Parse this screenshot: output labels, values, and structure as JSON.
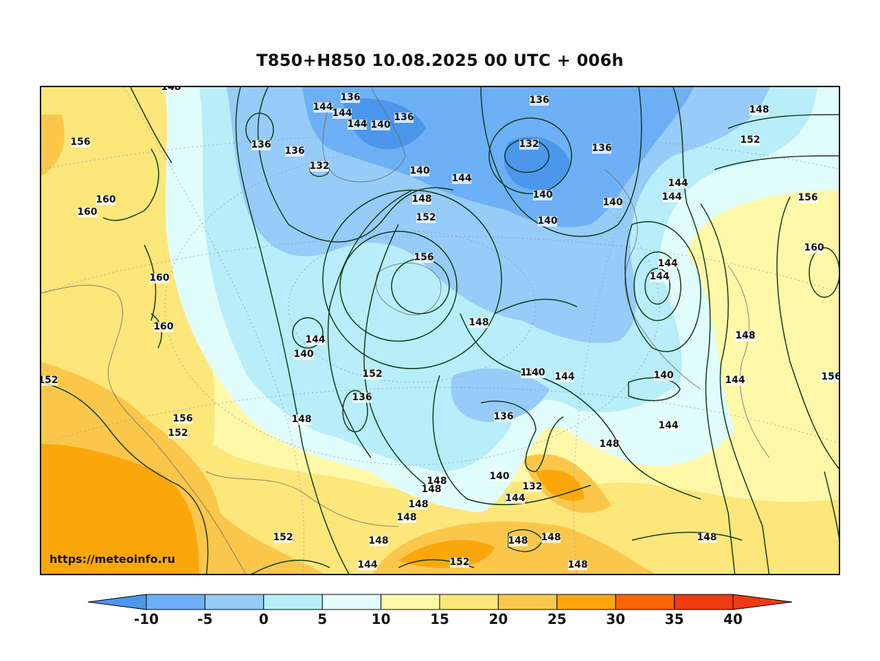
{
  "title": "T850+H850 10.08.2025 00 UTC + 006h",
  "watermark": "https://meteoinfo.ru",
  "colorbar": {
    "ticks": [
      "-10",
      "-5",
      "0",
      "5",
      "10",
      "15",
      "20",
      "25",
      "30",
      "35",
      "40"
    ],
    "colors": [
      "#4a97ec",
      "#6eb0f5",
      "#97cbf8",
      "#b7eef9",
      "#e0fcfb",
      "#fff8a8",
      "#fde67a",
      "#fbc74b",
      "#fba70c",
      "#fb6505",
      "#f03a10"
    ]
  },
  "contour_labels": [
    {
      "text": "148"
    },
    {
      "text": "156"
    },
    {
      "text": "160"
    },
    {
      "text": "160"
    },
    {
      "text": "160"
    },
    {
      "text": "160"
    },
    {
      "text": "152"
    },
    {
      "text": "156"
    },
    {
      "text": "152"
    },
    {
      "text": "136"
    },
    {
      "text": "136"
    },
    {
      "text": "144"
    },
    {
      "text": "144"
    },
    {
      "text": "144"
    },
    {
      "text": "140"
    },
    {
      "text": "136"
    },
    {
      "text": "136"
    },
    {
      "text": "132"
    },
    {
      "text": "140"
    },
    {
      "text": "144"
    },
    {
      "text": "148"
    },
    {
      "text": "152"
    },
    {
      "text": "156"
    },
    {
      "text": "136"
    },
    {
      "text": "132"
    },
    {
      "text": "140"
    },
    {
      "text": "136"
    },
    {
      "text": "140"
    },
    {
      "text": "140"
    },
    {
      "text": "148"
    },
    {
      "text": "152"
    },
    {
      "text": "144"
    },
    {
      "text": "140"
    },
    {
      "text": "136"
    },
    {
      "text": "136"
    },
    {
      "text": "132"
    },
    {
      "text": "156"
    },
    {
      "text": "160"
    },
    {
      "text": "144"
    },
    {
      "text": "144"
    },
    {
      "text": "148"
    },
    {
      "text": "144"
    },
    {
      "text": "144"
    },
    {
      "text": "148"
    },
    {
      "text": "152"
    },
    {
      "text": "152"
    },
    {
      "text": "148"
    },
    {
      "text": "148"
    },
    {
      "text": "140"
    },
    {
      "text": "140"
    },
    {
      "text": "136"
    },
    {
      "text": "144"
    },
    {
      "text": "144"
    },
    {
      "text": "148"
    },
    {
      "text": "156"
    },
    {
      "text": "144"
    },
    {
      "text": "148"
    },
    {
      "text": "148"
    },
    {
      "text": "148"
    },
    {
      "text": "148"
    },
    {
      "text": "140"
    },
    {
      "text": "144"
    },
    {
      "text": "152"
    },
    {
      "text": "148"
    },
    {
      "text": "144"
    },
    {
      "text": "152"
    },
    {
      "text": "148"
    },
    {
      "text": "148"
    },
    {
      "text": "148"
    },
    {
      "text": "148"
    }
  ]
}
